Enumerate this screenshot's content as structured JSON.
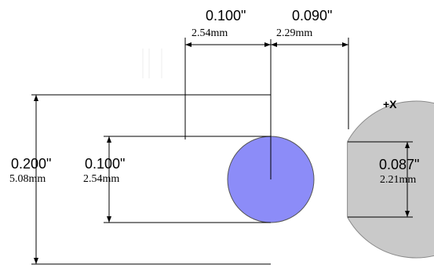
{
  "colors": {
    "outer_body": "#c9c9c9",
    "inner_core": "#8c8cf8",
    "lines": "#000000",
    "background": "#ffffff"
  },
  "dimensions": {
    "top_left": {
      "inches": "0.100\"",
      "mm": "2.54mm"
    },
    "top_right": {
      "inches": "0.090\"",
      "mm": "2.29mm"
    },
    "outer_height": {
      "inches": "0.200\"",
      "mm": "5.08mm"
    },
    "inner_height": {
      "inches": "0.100\"",
      "mm": "2.54mm"
    },
    "flat_height": {
      "inches": "0.087\"",
      "mm": "2.21mm"
    }
  },
  "axis_label": "+X"
}
